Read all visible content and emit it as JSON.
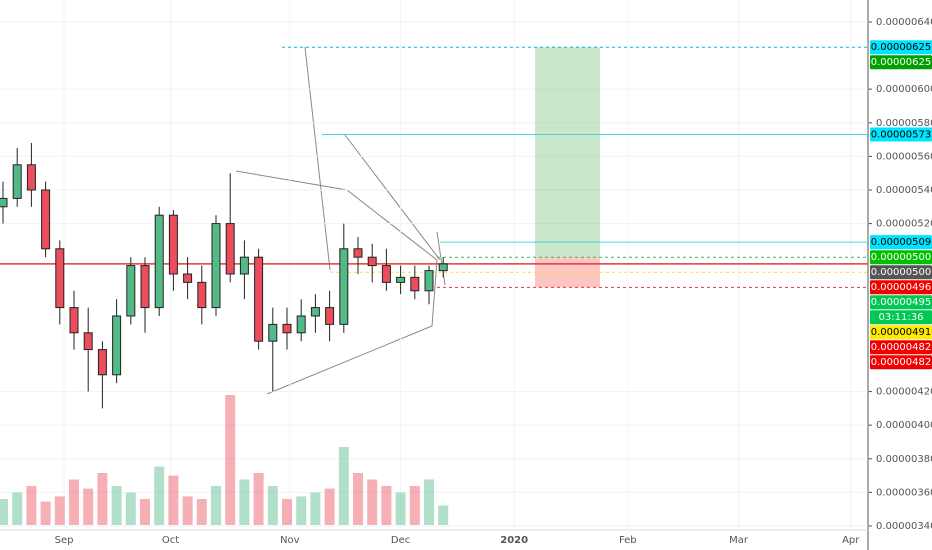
{
  "chart_data": {
    "type": "candlestick",
    "categories": [
      null,
      null,
      null,
      null,
      null,
      null,
      null,
      null,
      null,
      null,
      null,
      null,
      null,
      null,
      null,
      null,
      null,
      null,
      null,
      null,
      null,
      null,
      null,
      null,
      null,
      null,
      null,
      null,
      null,
      null,
      null,
      null
    ],
    "open": [
      5.3e-06,
      5.35e-06,
      5.55e-06,
      5.4e-06,
      5.05e-06,
      4.7e-06,
      4.55e-06,
      4.45e-06,
      4.3e-06,
      4.65e-06,
      4.95e-06,
      4.7e-06,
      5.25e-06,
      4.9e-06,
      4.85e-06,
      4.7e-06,
      5.2e-06,
      4.9e-06,
      5e-06,
      4.5e-06,
      4.6e-06,
      4.55e-06,
      4.65e-06,
      4.7e-06,
      4.6e-06,
      5.05e-06,
      5e-06,
      4.95e-06,
      4.85e-06,
      4.88e-06,
      4.8e-06,
      4.92e-06
    ],
    "high": [
      5.45e-06,
      5.65e-06,
      5.68e-06,
      5.45e-06,
      5.1e-06,
      4.8e-06,
      4.7e-06,
      4.5e-06,
      4.75e-06,
      5e-06,
      5e-06,
      5.3e-06,
      5.28e-06,
      5e-06,
      4.95e-06,
      5.25e-06,
      5.5e-06,
      5.1e-06,
      5.05e-06,
      4.7e-06,
      4.7e-06,
      4.75e-06,
      4.78e-06,
      4.8e-06,
      5.2e-06,
      5.12e-06,
      5.08e-06,
      5.05e-06,
      4.95e-06,
      4.95e-06,
      4.95e-06,
      5e-06
    ],
    "low": [
      5.2e-06,
      5.3e-06,
      5.3e-06,
      5e-06,
      4.6e-06,
      4.45e-06,
      4.2e-06,
      4.1e-06,
      4.25e-06,
      4.6e-06,
      4.55e-06,
      4.65e-06,
      4.8e-06,
      4.75e-06,
      4.6e-06,
      4.65e-06,
      4.85e-06,
      4.75e-06,
      4.45e-06,
      4.2e-06,
      4.45e-06,
      4.5e-06,
      4.55e-06,
      4.5e-06,
      4.55e-06,
      4.9e-06,
      4.85e-06,
      4.8e-06,
      4.78e-06,
      4.75e-06,
      4.72e-06,
      4.88e-06
    ],
    "close": [
      5.35e-06,
      5.55e-06,
      5.4e-06,
      5.05e-06,
      4.7e-06,
      4.55e-06,
      4.45e-06,
      4.3e-06,
      4.65e-06,
      4.95e-06,
      4.7e-06,
      5.25e-06,
      4.9e-06,
      4.85e-06,
      4.7e-06,
      5.2e-06,
      4.9e-06,
      5e-06,
      4.5e-06,
      4.6e-06,
      4.55e-06,
      4.65e-06,
      4.7e-06,
      4.6e-06,
      5.05e-06,
      5e-06,
      4.95e-06,
      4.85e-06,
      4.88e-06,
      4.8e-06,
      4.92e-06,
      4.96e-06
    ],
    "volume": [
      20,
      25,
      30,
      18,
      22,
      35,
      28,
      40,
      30,
      25,
      20,
      45,
      38,
      22,
      20,
      30,
      100,
      35,
      40,
      30,
      20,
      22,
      25,
      28,
      60,
      40,
      35,
      30,
      25,
      30,
      35,
      15
    ],
    "up_color": "#53b987",
    "down_color": "#eb4d5c",
    "ylim": [
      3.376e-06,
      6.531e-06
    ],
    "yticks": [
      {
        "value": 6.4e-06,
        "label": "0.00000640"
      },
      {
        "value": 6e-06,
        "label": "0.00000600"
      },
      {
        "value": 5.8e-06,
        "label": "0.00000580"
      },
      {
        "value": 5.6e-06,
        "label": "0.00000560"
      },
      {
        "value": 5.4e-06,
        "label": "0.00000540"
      },
      {
        "value": 5.2e-06,
        "label": "0.00000520"
      },
      {
        "value": 4.2e-06,
        "label": "0.00000420"
      },
      {
        "value": 4e-06,
        "label": "0.00000400"
      },
      {
        "value": 3.8e-06,
        "label": "0.00000380"
      },
      {
        "value": 3.6e-06,
        "label": "0.00000360"
      },
      {
        "value": 3.4e-06,
        "label": "0.00000340"
      }
    ],
    "xticks": [
      {
        "value": 4.3,
        "label": "Sep"
      },
      {
        "value": 11.8,
        "label": "Oct"
      },
      {
        "value": 20.2,
        "label": "Nov"
      },
      {
        "value": 28,
        "label": "Dec"
      },
      {
        "value": 36,
        "label": "2020"
      },
      {
        "value": 44,
        "label": "Feb"
      },
      {
        "value": 51.8,
        "label": "Mar"
      },
      {
        "value": 59.7,
        "label": "Apr"
      }
    ],
    "levels": [
      {
        "value": 6.25e-06,
        "color": "#00bcd4",
        "dash": true
      },
      {
        "value": 5.73e-06,
        "color": "#4dd0e1",
        "dash": false
      },
      {
        "value": 5.09e-06,
        "color": "#4dd0e1",
        "dash": false
      },
      {
        "value": 5e-06,
        "color": "#4caf50",
        "dash": true
      },
      {
        "value": 4.96e-06,
        "color": "#e53935",
        "dash": false
      },
      {
        "value": 4.91e-06,
        "color": "#fdd835",
        "dash": true
      },
      {
        "value": 4.82e-06,
        "color": "#e53935",
        "dash": true
      }
    ],
    "position": {
      "entry": 5e-06,
      "target": 6.25e-06,
      "stop": 4.82e-06
    },
    "price_tags": [
      {
        "label": "0.00000625",
        "value": 6.25e-06,
        "color": "#00e5ff"
      },
      {
        "label": "0.00000625",
        "value": 6.25e-06,
        "color": "#00a000"
      },
      {
        "label": "0.00000573",
        "value": 5.73e-06,
        "color": "#00e5ff"
      },
      {
        "label": "0.00000509",
        "value": 5.09e-06,
        "color": "#00e5ff"
      },
      {
        "label": "0.00000500",
        "value": 5e-06,
        "color": "#00c000"
      },
      {
        "label": "0.00000500",
        "value": 5e-06,
        "color": "#555555"
      },
      {
        "label": "0.00000496",
        "value": 4.96e-06,
        "color": "#f00000"
      },
      {
        "label": "0.00000495",
        "value": 4.95e-06,
        "color": "#00c853"
      },
      {
        "label": "03:11:36",
        "color": "#00c853"
      },
      {
        "label": "0.00000491",
        "value": 4.91e-06,
        "color": "#ffeb00"
      },
      {
        "label": "0.00000482",
        "value": 4.82e-06,
        "color": "#f00000"
      },
      {
        "label": "0.00000482",
        "value": 4.82e-06,
        "color": "#f00000"
      }
    ]
  }
}
